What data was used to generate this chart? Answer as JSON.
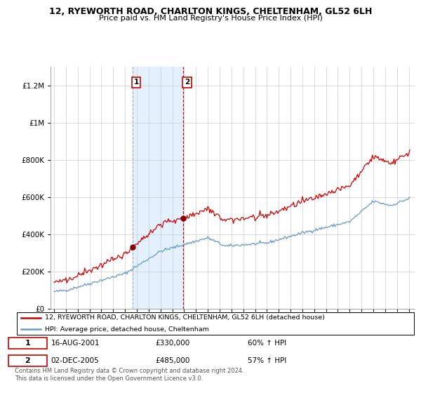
{
  "title": "12, RYEWORTH ROAD, CHARLTON KINGS, CHELTENHAM, GL52 6LH",
  "subtitle": "Price paid vs. HM Land Registry's House Price Index (HPI)",
  "legend_line1": "12, RYEWORTH ROAD, CHARLTON KINGS, CHELTENHAM, GL52 6LH (detached house)",
  "legend_line2": "HPI: Average price, detached house, Cheltenham",
  "sale1_date": "16-AUG-2001",
  "sale1_price": "£330,000",
  "sale1_hpi": "60% ↑ HPI",
  "sale2_date": "02-DEC-2005",
  "sale2_price": "£485,000",
  "sale2_hpi": "57% ↑ HPI",
  "footnote1": "Contains HM Land Registry data © Crown copyright and database right 2024.",
  "footnote2": "This data is licensed under the Open Government Licence v3.0.",
  "sale1_year": 2001.625,
  "sale2_year": 2005.917,
  "sale1_value": 330000,
  "sale2_value": 485000,
  "red_color": "#cc0000",
  "blue_color": "#6699cc",
  "shade_color": "#ddeeff",
  "ylim_max": 1300000,
  "xlim_start": 1994.7,
  "xlim_end": 2025.5
}
